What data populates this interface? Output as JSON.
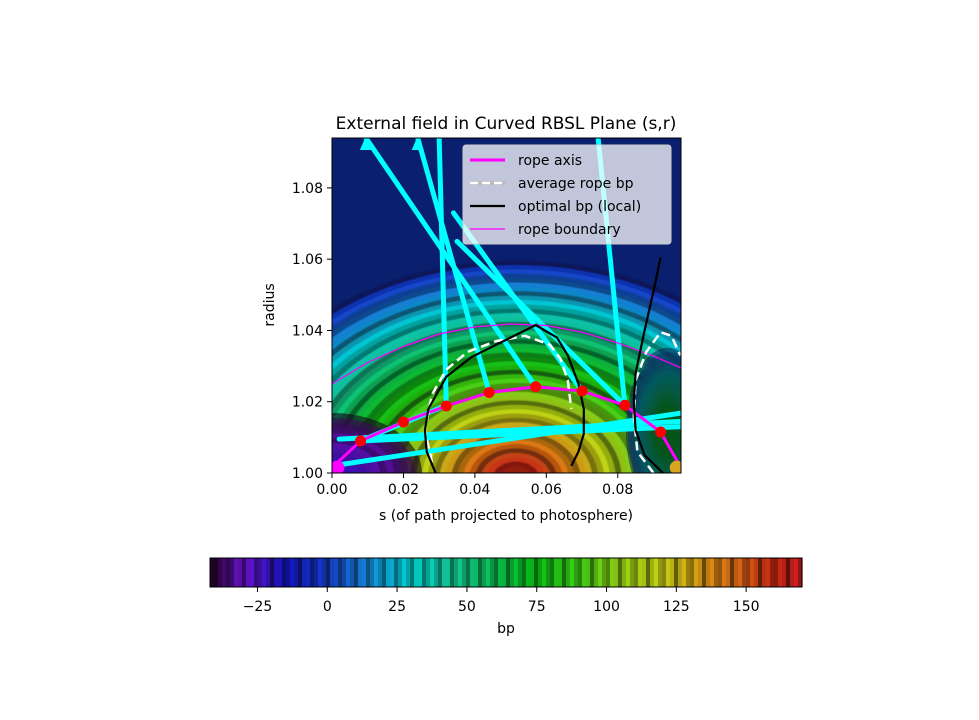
{
  "chart_data": {
    "type": "heatmap",
    "title": "External field in Curved RBSL Plane (s,r)",
    "xlabel": "s (of path projected to photosphere)",
    "ylabel": "radius",
    "xlim": [
      0.0,
      0.0977
    ],
    "ylim": [
      1.0,
      1.094
    ],
    "xticks": [
      "0.00",
      "0.02",
      "0.04",
      "0.06",
      "0.08"
    ],
    "xtick_values": [
      0.0,
      0.02,
      0.04,
      0.06,
      0.08
    ],
    "yticks": [
      "1.00",
      "1.02",
      "1.04",
      "1.06",
      "1.08"
    ],
    "ytick_values": [
      1.0,
      1.02,
      1.04,
      1.06,
      1.08
    ],
    "legend_position": "top-right",
    "legend": [
      {
        "label": "rope axis",
        "style": "solid-thick",
        "color": "#ff00ff"
      },
      {
        "label": "average rope bp",
        "style": "dashed",
        "color": "#ffffff"
      },
      {
        "label": "optimal bp (local)",
        "style": "solid",
        "color": "#000000"
      },
      {
        "label": "rope boundary",
        "style": "solid-thin",
        "color": "#ff00ff"
      }
    ],
    "colorbar": {
      "label": "bp",
      "range": [
        -42,
        170
      ],
      "ticks": [
        "−25",
        "0",
        "25",
        "50",
        "75",
        "100",
        "125",
        "150"
      ],
      "tick_values": [
        -25,
        0,
        25,
        50,
        75,
        100,
        125,
        150
      ],
      "colormap": "nipy_spectral-banded"
    },
    "series": [
      {
        "name": "rope axis",
        "color": "#ff00ff",
        "x": [
          0.0,
          0.008,
          0.02,
          0.032,
          0.044,
          0.057,
          0.07,
          0.082,
          0.092,
          0.0977
        ],
        "y": [
          1.0015,
          1.009,
          1.0143,
          1.0188,
          1.0226,
          1.0242,
          1.023,
          1.019,
          1.0115,
          1.0015
        ]
      },
      {
        "name": "rope boundary",
        "color": "#ff00ff",
        "x": [
          0.0,
          0.01,
          0.02,
          0.03,
          0.04,
          0.05,
          0.06,
          0.07,
          0.08,
          0.09,
          0.0977
        ],
        "y": [
          1.025,
          1.031,
          1.0355,
          1.039,
          1.041,
          1.0418,
          1.0414,
          1.0395,
          1.0365,
          1.0328,
          1.0295
        ]
      },
      {
        "name": "average rope bp",
        "color": "#ffffff",
        "x": [
          0.028,
          0.026,
          0.028,
          0.032,
          0.038,
          0.046,
          0.054,
          0.061,
          0.064,
          0.066,
          0.067
        ],
        "y": [
          1.003,
          1.012,
          1.022,
          1.029,
          1.034,
          1.037,
          1.0385,
          1.036,
          1.032,
          1.026,
          1.018
        ]
      },
      {
        "name": "average rope bp (right)",
        "color": "#ffffff",
        "x": [
          0.09,
          0.0855,
          0.0845,
          0.085,
          0.088,
          0.092,
          0.095,
          0.0975
        ],
        "y": [
          1.0,
          1.006,
          1.016,
          1.026,
          1.034,
          1.0395,
          1.0385,
          1.033
        ]
      },
      {
        "name": "optimal bp (local)",
        "color": "#000000",
        "x": [
          0.029,
          0.0265,
          0.026,
          0.027,
          0.032,
          0.039,
          0.046,
          0.057,
          0.063,
          0.066,
          0.069,
          0.0705,
          0.0705,
          0.069,
          0.067
        ],
        "y": [
          1.0,
          1.006,
          1.012,
          1.018,
          1.027,
          1.0325,
          1.036,
          1.0415,
          1.038,
          1.033,
          1.025,
          1.018,
          1.011,
          1.006,
          1.002
        ]
      },
      {
        "name": "optimal bp (local, right)",
        "color": "#000000",
        "x": [
          0.0927,
          0.0875,
          0.085,
          0.0845,
          0.085,
          0.0875,
          0.09,
          0.092
        ],
        "y": [
          1.0,
          1.005,
          1.012,
          1.02,
          1.028,
          1.04,
          1.051,
          1.0605
        ]
      }
    ],
    "axis_points": {
      "color": "#ff0000",
      "x": [
        0.008,
        0.02,
        0.032,
        0.044,
        0.057,
        0.07,
        0.082,
        0.092
      ],
      "y": [
        1.009,
        1.0143,
        1.0188,
        1.0226,
        1.0242,
        1.023,
        1.019,
        1.0115
      ]
    },
    "endpoints": [
      {
        "x": 0.0015,
        "y": 1.0015,
        "color": "#ff00ff"
      },
      {
        "x": 0.0965,
        "y": 1.0015,
        "color": "#daa520"
      }
    ],
    "field_lines": {
      "color": "#00ffff",
      "lines": [
        [
          [
            0.008,
            1.009
          ],
          [
            0.0315,
            1.0188
          ]
        ],
        [
          [
            0.044,
            1.0226
          ],
          [
            0.024,
            1.094
          ]
        ],
        [
          [
            0.057,
            1.0242
          ],
          [
            0.0095,
            1.094
          ]
        ],
        [
          [
            0.032,
            1.0188
          ],
          [
            0.03,
            1.094
          ]
        ],
        [
          [
            0.07,
            1.023
          ],
          [
            0.034,
            1.073
          ]
        ],
        [
          [
            0.082,
            1.019
          ],
          [
            0.0745,
            1.094
          ]
        ],
        [
          [
            0.082,
            1.019
          ],
          [
            0.035,
            1.065
          ]
        ],
        [
          [
            0.0,
            1.002
          ],
          [
            0.0977,
            1.0168
          ]
        ],
        [
          [
            0.002,
            1.0095
          ],
          [
            0.0977,
            1.0145
          ]
        ],
        [
          [
            0.008,
            1.009
          ],
          [
            0.0977,
            1.013
          ]
        ]
      ]
    },
    "arrows": {
      "color": "#00ffff",
      "points": [
        [
          0.0095,
          1.094
        ],
        [
          0.024,
          1.094
        ]
      ]
    }
  }
}
